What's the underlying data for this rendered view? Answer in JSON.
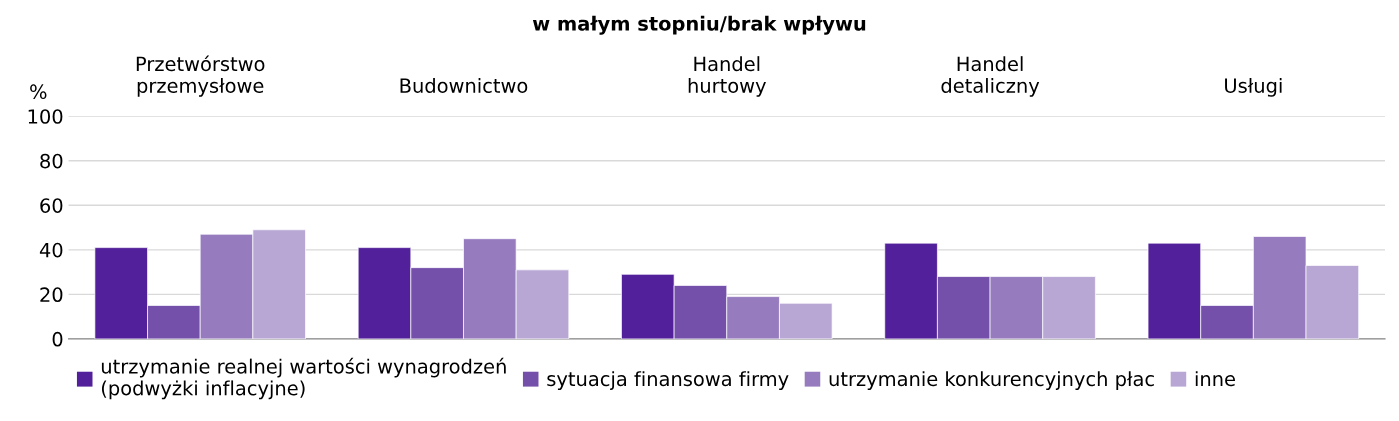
{
  "chart_data": {
    "type": "bar",
    "title": "w małym stopniu/brak wpływu",
    "ylabel": "%",
    "categories": [
      "Przetwórstwo\nprzemysłowe",
      "Budownictwo",
      "Handel\nhurtowy",
      "Handel\ndetaliczny",
      "Usługi"
    ],
    "series": [
      {
        "name": "utrzymanie realnej wartości wynagrodzeń\n(podwyżki inflacyjne)",
        "color": "#52209a",
        "values": [
          41,
          41,
          29,
          43,
          43
        ]
      },
      {
        "name": "sytuacja finansowa firmy",
        "color": "#7450ab",
        "values": [
          15,
          32,
          24,
          28,
          15
        ]
      },
      {
        "name": "utrzymanie konkurencyjnych płac",
        "color": "#967cbf",
        "values": [
          47,
          45,
          19,
          28,
          46
        ]
      },
      {
        "name": "inne",
        "color": "#b8a7d4",
        "values": [
          49,
          31,
          16,
          28,
          33
        ]
      }
    ],
    "ylim": [
      0,
      100
    ],
    "yticks": [
      0,
      20,
      40,
      60,
      80,
      100
    ],
    "grid": "y",
    "legend": "bottom"
  }
}
